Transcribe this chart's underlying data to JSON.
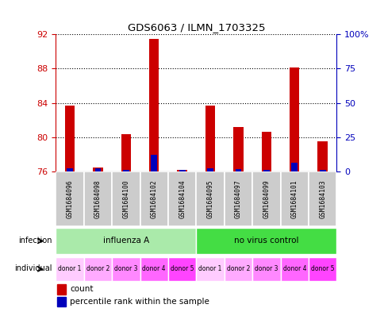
{
  "title": "GDS6063 / ILMN_1703325",
  "samples": [
    "GSM1684096",
    "GSM1684098",
    "GSM1684100",
    "GSM1684102",
    "GSM1684104",
    "GSM1684095",
    "GSM1684097",
    "GSM1684099",
    "GSM1684101",
    "GSM1684103"
  ],
  "red_values": [
    83.7,
    76.5,
    80.4,
    91.5,
    76.2,
    83.7,
    81.2,
    80.6,
    88.1,
    79.5
  ],
  "blue_values": [
    76.4,
    76.4,
    76.2,
    78.0,
    76.2,
    76.4,
    76.3,
    76.2,
    77.0,
    76.2
  ],
  "ylim_left": [
    76,
    92
  ],
  "yticks_left": [
    76,
    80,
    84,
    88,
    92
  ],
  "ylim_right": [
    0,
    100
  ],
  "yticks_right": [
    0,
    25,
    50,
    75,
    100
  ],
  "ytick_labels_right": [
    "0",
    "25",
    "50",
    "75",
    "100%"
  ],
  "infection_groups": [
    {
      "label": "influenza A",
      "start": 0,
      "end": 5,
      "color": "#aaeaaa"
    },
    {
      "label": "no virus control",
      "start": 5,
      "end": 10,
      "color": "#44dd44"
    }
  ],
  "individual_colors_cycle": [
    "#ffccff",
    "#ffaaff",
    "#ff88ff",
    "#ff66ff",
    "#ff44ff"
  ],
  "individual_labels": [
    "donor 1",
    "donor 2",
    "donor 3",
    "donor 4",
    "donor 5",
    "donor 1",
    "donor 2",
    "donor 3",
    "donor 4",
    "donor 5"
  ],
  "red_color": "#cc0000",
  "blue_color": "#0000bb",
  "bar_width": 0.35,
  "blue_bar_width": 0.22,
  "ylabel_left_color": "#cc0000",
  "ylabel_right_color": "#0000bb",
  "sample_bg_color": "#cccccc",
  "baseline": 76
}
